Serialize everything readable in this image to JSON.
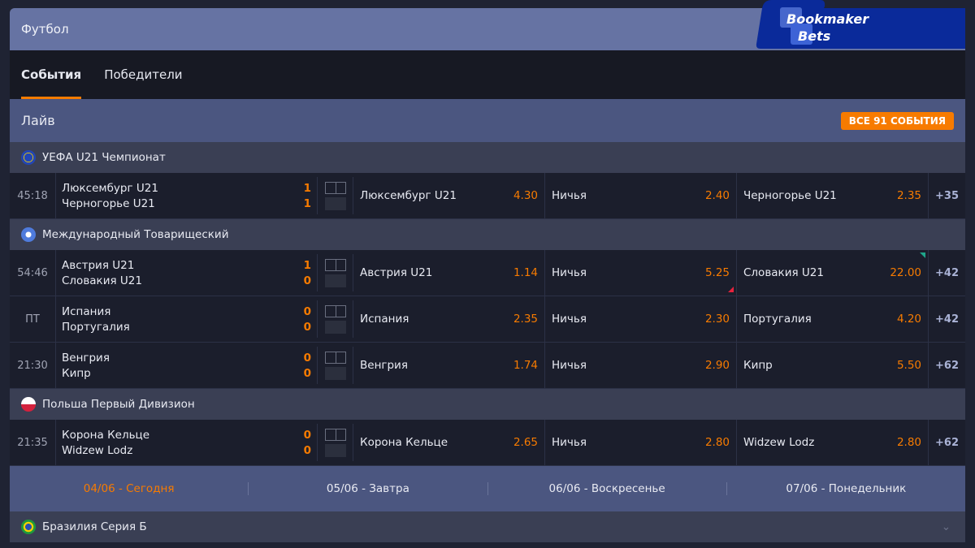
{
  "header": {
    "title": "Футбол"
  },
  "logo": {
    "line1": "Bookmaker",
    "line2": "Bets",
    "color": "#0a2a9a"
  },
  "tabs": [
    {
      "label": "События",
      "active": true
    },
    {
      "label": "Победители",
      "active": false
    }
  ],
  "live": {
    "title": "Лайв",
    "all_events_label": "ВСЕ 91 СОБЫТИЯ"
  },
  "accent_color": "#f77b00",
  "leagues": [
    {
      "name": "УЕФА U21 Чемпионат",
      "icon": "eu-flag-icon",
      "matches": [
        {
          "time": "45:18",
          "home": "Люксембург U21",
          "away": "Черногорье U21",
          "home_score": "1",
          "away_score": "1",
          "odds": [
            {
              "label": "Люксембург U21",
              "value": "4.30"
            },
            {
              "label": "Ничья",
              "value": "2.40"
            },
            {
              "label": "Черногорье U21",
              "value": "2.35"
            }
          ],
          "more": "+35"
        }
      ]
    },
    {
      "name": "Международный Товарищеский",
      "icon": "world-icon",
      "matches": [
        {
          "time": "54:46",
          "home": "Австрия U21",
          "away": "Словакия U21",
          "home_score": "1",
          "away_score": "0",
          "odds": [
            {
              "label": "Австрия U21",
              "value": "1.14"
            },
            {
              "label": "Ничья",
              "value": "5.25",
              "trend": "down"
            },
            {
              "label": "Словакия U21",
              "value": "22.00",
              "trend": "up"
            }
          ],
          "more": "+42"
        },
        {
          "time": "ПТ",
          "home": "Испания",
          "away": "Португалия",
          "home_score": "0",
          "away_score": "0",
          "odds": [
            {
              "label": "Испания",
              "value": "2.35"
            },
            {
              "label": "Ничья",
              "value": "2.30"
            },
            {
              "label": "Португалия",
              "value": "4.20"
            }
          ],
          "more": "+42"
        },
        {
          "time": "21:30",
          "home": "Венгрия",
          "away": "Кипр",
          "home_score": "0",
          "away_score": "0",
          "odds": [
            {
              "label": "Венгрия",
              "value": "1.74"
            },
            {
              "label": "Ничья",
              "value": "2.90"
            },
            {
              "label": "Кипр",
              "value": "5.50"
            }
          ],
          "more": "+62"
        }
      ]
    },
    {
      "name": "Польша Первый Дивизион",
      "icon": "poland-flag-icon",
      "matches": [
        {
          "time": "21:35",
          "home": "Корона Кельце",
          "away": "Widzew Lodz",
          "home_score": "0",
          "away_score": "0",
          "odds": [
            {
              "label": "Корона Кельце",
              "value": "2.65"
            },
            {
              "label": "Ничья",
              "value": "2.80"
            },
            {
              "label": "Widzew Lodz",
              "value": "2.80"
            }
          ],
          "more": "+62"
        }
      ]
    }
  ],
  "dates": [
    {
      "label": "04/06 - Сегодня",
      "active": true
    },
    {
      "label": "05/06 - Завтра"
    },
    {
      "label": "06/06 - Воскресенье"
    },
    {
      "label": "07/06 - Понедельник"
    }
  ],
  "next_league": {
    "name": "Бразилия Серия Б",
    "icon": "brazil-flag-icon"
  }
}
